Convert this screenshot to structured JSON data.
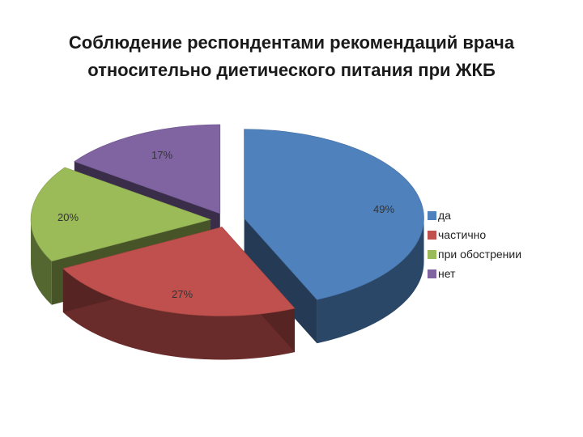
{
  "chart_data": {
    "type": "pie",
    "style": "3d-exploded",
    "title_lines": [
      "Соблюдение респондентами рекомендаций врача",
      "относительно диетического питания при ЖКБ"
    ],
    "categories": [
      "да",
      "частично",
      "при обострении",
      "нет"
    ],
    "values": [
      49,
      27,
      20,
      17
    ],
    "labels": [
      "49%",
      "27%",
      "20%",
      "17%"
    ],
    "colors": [
      "#4F81BD",
      "#C0504D",
      "#9BBB59",
      "#8064A2"
    ],
    "legend_position": "right"
  }
}
